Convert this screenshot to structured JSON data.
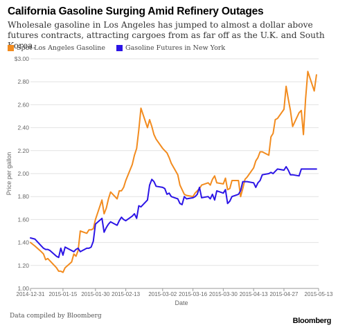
{
  "header": {
    "title": "California Gasoline Surging Amid Refinery Outages",
    "subtitle": "Wholesale gasoline in Los Angeles has jumped to almost a dollar above futures contracts, attracting cargoes from as far off as the U.K. and South Korea."
  },
  "footer": {
    "source": "Data compiled by Bloomberg",
    "logo": "Bloomberg"
  },
  "chart_data": {
    "type": "line",
    "xlabel": "Date",
    "ylabel": "Price per gallon",
    "ylim": [
      1.0,
      3.0
    ],
    "yticks": [
      "1.00",
      "1.20",
      "1.40",
      "1.60",
      "1.80",
      "2.00",
      "2.20",
      "2.40",
      "2.60",
      "2.80",
      "$3.00"
    ],
    "xlim": [
      "2014-12-31",
      "2015-05-13"
    ],
    "xticks": [
      "2014-12-31",
      "2015-01-15",
      "2015-01-30",
      "2015-02-13",
      "2015-03-02",
      "2015-03-16",
      "2015-03-30",
      "2015-04-13",
      "2015-04-27",
      "2015-05-13"
    ],
    "grid": true,
    "legend_position": "top-left",
    "series": [
      {
        "name": "Spot Los Angeles Gasoline",
        "color": "#f28b1e",
        "x": [
          "2014-12-31",
          "2015-01-02",
          "2015-01-05",
          "2015-01-06",
          "2015-01-07",
          "2015-01-08",
          "2015-01-09",
          "2015-01-12",
          "2015-01-13",
          "2015-01-14",
          "2015-01-15",
          "2015-01-16",
          "2015-01-19",
          "2015-01-20",
          "2015-01-21",
          "2015-01-22",
          "2015-01-23",
          "2015-01-26",
          "2015-01-27",
          "2015-01-28",
          "2015-01-29",
          "2015-01-30",
          "2015-02-02",
          "2015-02-03",
          "2015-02-04",
          "2015-02-05",
          "2015-02-06",
          "2015-02-09",
          "2015-02-10",
          "2015-02-11",
          "2015-02-12",
          "2015-02-13",
          "2015-02-16",
          "2015-02-17",
          "2015-02-18",
          "2015-02-19",
          "2015-02-20",
          "2015-02-23",
          "2015-02-24",
          "2015-02-25",
          "2015-02-26",
          "2015-02-27",
          "2015-03-02",
          "2015-03-03",
          "2015-03-04",
          "2015-03-05",
          "2015-03-06",
          "2015-03-09",
          "2015-03-10",
          "2015-03-11",
          "2015-03-12",
          "2015-03-13",
          "2015-03-16",
          "2015-03-17",
          "2015-03-18",
          "2015-03-19",
          "2015-03-20",
          "2015-03-23",
          "2015-03-24",
          "2015-03-25",
          "2015-03-26",
          "2015-03-27",
          "2015-03-30",
          "2015-03-31",
          "2015-04-01",
          "2015-04-02",
          "2015-04-03",
          "2015-04-06",
          "2015-04-07",
          "2015-04-08",
          "2015-04-09",
          "2015-04-10",
          "2015-04-13",
          "2015-04-14",
          "2015-04-15",
          "2015-04-16",
          "2015-04-17",
          "2015-04-20",
          "2015-04-21",
          "2015-04-22",
          "2015-04-23",
          "2015-04-24",
          "2015-04-27",
          "2015-04-28",
          "2015-04-29",
          "2015-04-30",
          "2015-05-01",
          "2015-05-04",
          "2015-05-05",
          "2015-05-06",
          "2015-05-07",
          "2015-05-08",
          "2015-05-11",
          "2015-05-12"
        ],
        "values": [
          1.4,
          1.37,
          1.32,
          1.3,
          1.25,
          1.26,
          1.24,
          1.18,
          1.15,
          1.15,
          1.14,
          1.18,
          1.23,
          1.3,
          1.28,
          1.33,
          1.5,
          1.48,
          1.51,
          1.51,
          1.52,
          1.6,
          1.77,
          1.65,
          1.7,
          1.78,
          1.84,
          1.78,
          1.85,
          1.85,
          1.88,
          1.94,
          2.08,
          2.16,
          2.22,
          2.38,
          2.57,
          2.4,
          2.47,
          2.41,
          2.34,
          2.3,
          2.22,
          2.2,
          2.18,
          2.14,
          2.09,
          1.99,
          1.9,
          1.86,
          1.82,
          1.81,
          1.8,
          1.83,
          1.85,
          1.87,
          1.9,
          1.92,
          1.9,
          1.95,
          1.98,
          1.92,
          1.91,
          1.96,
          1.86,
          1.87,
          1.94,
          1.94,
          1.8,
          1.87,
          1.95,
          1.97,
          2.05,
          2.11,
          2.14,
          2.19,
          2.19,
          2.16,
          2.32,
          2.35,
          2.47,
          2.48,
          2.56,
          2.76,
          2.65,
          2.55,
          2.41,
          2.53,
          2.55,
          2.34,
          2.65,
          2.89,
          2.72,
          2.86
        ]
      },
      {
        "name": "Gasoline Futures in New York",
        "color": "#2b14e6",
        "x": [
          "2014-12-31",
          "2015-01-02",
          "2015-01-05",
          "2015-01-06",
          "2015-01-07",
          "2015-01-08",
          "2015-01-09",
          "2015-01-12",
          "2015-01-13",
          "2015-01-14",
          "2015-01-15",
          "2015-01-16",
          "2015-01-19",
          "2015-01-20",
          "2015-01-21",
          "2015-01-22",
          "2015-01-23",
          "2015-01-26",
          "2015-01-27",
          "2015-01-28",
          "2015-01-29",
          "2015-01-30",
          "2015-02-02",
          "2015-02-03",
          "2015-02-04",
          "2015-02-05",
          "2015-02-06",
          "2015-02-09",
          "2015-02-10",
          "2015-02-11",
          "2015-02-12",
          "2015-02-13",
          "2015-02-16",
          "2015-02-17",
          "2015-02-18",
          "2015-02-19",
          "2015-02-20",
          "2015-02-23",
          "2015-02-24",
          "2015-02-25",
          "2015-02-26",
          "2015-02-27",
          "2015-03-02",
          "2015-03-03",
          "2015-03-04",
          "2015-03-05",
          "2015-03-06",
          "2015-03-09",
          "2015-03-10",
          "2015-03-11",
          "2015-03-12",
          "2015-03-13",
          "2015-03-16",
          "2015-03-17",
          "2015-03-18",
          "2015-03-19",
          "2015-03-20",
          "2015-03-23",
          "2015-03-24",
          "2015-03-25",
          "2015-03-26",
          "2015-03-27",
          "2015-03-30",
          "2015-03-31",
          "2015-04-01",
          "2015-04-02",
          "2015-04-03",
          "2015-04-06",
          "2015-04-07",
          "2015-04-08",
          "2015-04-09",
          "2015-04-10",
          "2015-04-13",
          "2015-04-14",
          "2015-04-15",
          "2015-04-16",
          "2015-04-17",
          "2015-04-20",
          "2015-04-21",
          "2015-04-22",
          "2015-04-23",
          "2015-04-24",
          "2015-04-27",
          "2015-04-28",
          "2015-04-29",
          "2015-04-30",
          "2015-05-01",
          "2015-05-04",
          "2015-05-05",
          "2015-05-06",
          "2015-05-07",
          "2015-05-08",
          "2015-05-11",
          "2015-05-12"
        ],
        "values": [
          1.44,
          1.43,
          1.37,
          1.35,
          1.34,
          1.34,
          1.33,
          1.28,
          1.27,
          1.35,
          1.29,
          1.36,
          1.33,
          1.32,
          1.34,
          1.35,
          1.32,
          1.35,
          1.35,
          1.36,
          1.41,
          1.56,
          1.61,
          1.49,
          1.53,
          1.56,
          1.58,
          1.55,
          1.59,
          1.62,
          1.6,
          1.59,
          1.63,
          1.65,
          1.61,
          1.72,
          1.71,
          1.77,
          1.9,
          1.95,
          1.93,
          1.89,
          1.88,
          1.87,
          1.82,
          1.83,
          1.8,
          1.78,
          1.74,
          1.73,
          1.8,
          1.78,
          1.79,
          1.8,
          1.82,
          1.88,
          1.79,
          1.8,
          1.78,
          1.82,
          1.77,
          1.85,
          1.83,
          1.86,
          1.74,
          1.76,
          1.8,
          1.82,
          1.85,
          1.93,
          1.93,
          1.93,
          1.92,
          1.88,
          1.92,
          1.94,
          1.99,
          2.0,
          2.01,
          2.0,
          2.02,
          2.04,
          2.03,
          2.06,
          2.03,
          1.99,
          1.99,
          1.98,
          2.04,
          2.04,
          2.04,
          2.04,
          2.04,
          2.04
        ]
      }
    ]
  }
}
